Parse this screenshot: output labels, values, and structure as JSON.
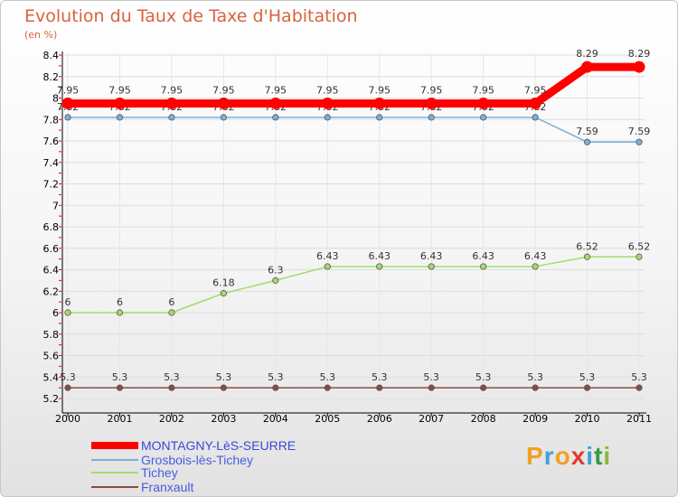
{
  "chart_data": {
    "type": "line",
    "title": "Evolution du Taux de Taxe d'Habitation",
    "ylabel": "(en %)",
    "ylim": [
      5.2,
      8.4
    ],
    "yticks": [
      "5.2",
      "5.4",
      "5.6",
      "5.8",
      "6",
      "6.2",
      "6.4",
      "6.6",
      "6.8",
      "7",
      "7.2",
      "7.4",
      "7.6",
      "7.8",
      "8",
      "8.2",
      "8.4"
    ],
    "categories": [
      "2000",
      "2001",
      "2002",
      "2003",
      "2004",
      "2005",
      "2006",
      "2007",
      "2008",
      "2009",
      "2010",
      "2011"
    ],
    "series": [
      {
        "name": "MONTAGNY-LèS-SEURRE",
        "color": "#ff0000",
        "values": [
          7.95,
          7.95,
          7.95,
          7.95,
          7.95,
          7.95,
          7.95,
          7.95,
          7.95,
          7.95,
          8.29,
          8.29
        ],
        "labels": [
          "7.95",
          "7.95",
          "7.95",
          "7.95",
          "7.95",
          "7.95",
          "7.95",
          "7.95",
          "7.95",
          "7.95",
          "8.29",
          "8.29"
        ]
      },
      {
        "name": "Grosbois-lès-Tichey",
        "color": "#7ab0d8",
        "values": [
          7.82,
          7.82,
          7.82,
          7.82,
          7.82,
          7.82,
          7.82,
          7.82,
          7.82,
          7.82,
          7.59,
          7.59
        ],
        "labels": [
          "7.82",
          "7.82",
          "7.82",
          "7.82",
          "7.82",
          "7.82",
          "7.82",
          "7.82",
          "7.82",
          "7.82",
          "7.59",
          "7.59"
        ]
      },
      {
        "name": "Tichey",
        "color": "#a3dc6a",
        "values": [
          6,
          6,
          6,
          6.18,
          6.3,
          6.43,
          6.43,
          6.43,
          6.43,
          6.43,
          6.52,
          6.52
        ],
        "labels": [
          "6",
          "6",
          "6",
          "6.18",
          "6.3",
          "6.43",
          "6.43",
          "6.43",
          "6.43",
          "6.43",
          "6.52",
          "6.52"
        ]
      },
      {
        "name": "Franxault",
        "color": "#8b4a4a",
        "values": [
          5.3,
          5.3,
          5.3,
          5.3,
          5.3,
          5.3,
          5.3,
          5.3,
          5.3,
          5.3,
          5.3,
          5.3
        ],
        "labels": [
          "5.3",
          "5.3",
          "5.3",
          "5.3",
          "5.3",
          "5.3",
          "5.3",
          "5.3",
          "5.3",
          "5.3",
          "5.3",
          "5.3"
        ]
      }
    ]
  },
  "logo": {
    "text": "Proxiti"
  }
}
